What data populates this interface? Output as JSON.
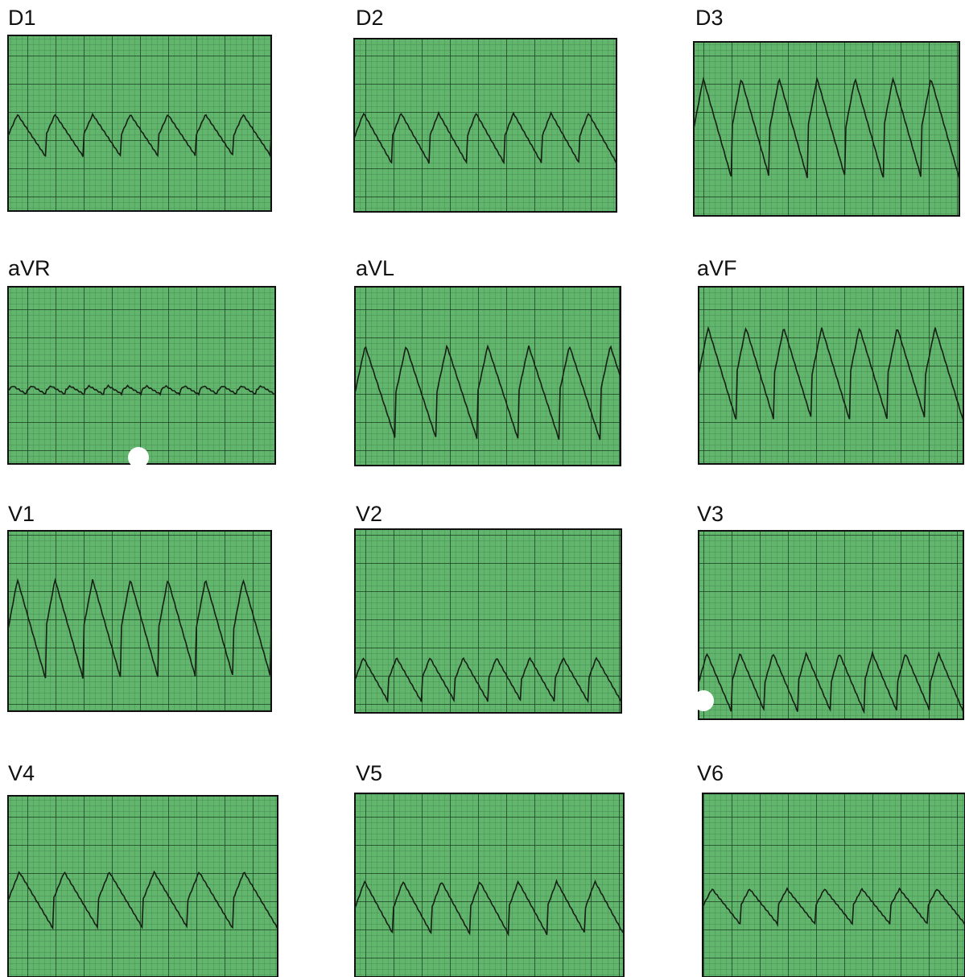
{
  "leads": [
    {
      "label": "D1"
    },
    {
      "label": "D2"
    },
    {
      "label": "D3"
    },
    {
      "label": "aVR"
    },
    {
      "label": "aVL"
    },
    {
      "label": "aVF"
    },
    {
      "label": "V1"
    },
    {
      "label": "V2"
    },
    {
      "label": "V3"
    },
    {
      "label": "V4"
    },
    {
      "label": "V5"
    },
    {
      "label": "V6"
    }
  ]
}
